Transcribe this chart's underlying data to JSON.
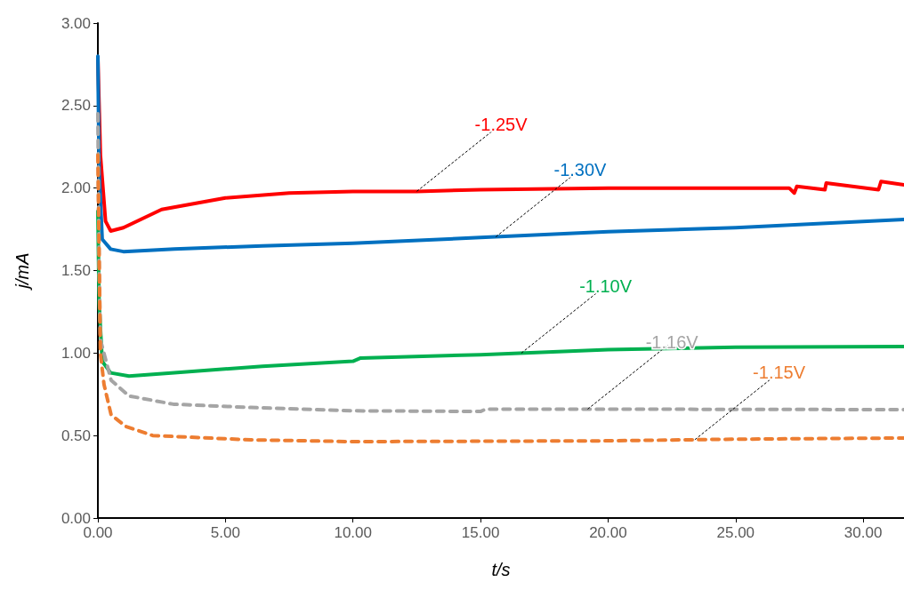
{
  "chart_data": {
    "type": "line",
    "xlabel": "t/s",
    "ylabel": "j/mA",
    "xlim": [
      0,
      31.6
    ],
    "ylim": [
      0,
      3
    ],
    "xticks": [
      {
        "value": 0,
        "label": "0.00"
      },
      {
        "value": 5,
        "label": "5.00"
      },
      {
        "value": 10,
        "label": "10.00"
      },
      {
        "value": 15,
        "label": "15.00"
      },
      {
        "value": 20,
        "label": "20.00"
      },
      {
        "value": 25,
        "label": "25.00"
      },
      {
        "value": 30,
        "label": "30.00"
      }
    ],
    "yticks": [
      {
        "value": 0,
        "label": "0.00"
      },
      {
        "value": 0.5,
        "label": "0.50"
      },
      {
        "value": 1,
        "label": "1.00"
      },
      {
        "value": 1.5,
        "label": "1.50"
      },
      {
        "value": 2,
        "label": "2.00"
      },
      {
        "value": 2.5,
        "label": "2.50"
      },
      {
        "value": 3,
        "label": "3.00"
      }
    ],
    "grid": false,
    "legend": false,
    "marker": "none",
    "series": [
      {
        "name": "-1.25V",
        "color": "#ff0000",
        "line_style": "solid",
        "x": [
          0,
          0.1,
          0.3,
          0.5,
          1,
          2.5,
          5,
          7.5,
          10,
          12.5,
          15,
          20,
          24,
          27.1,
          27.3,
          27.4,
          28.5,
          28.55,
          30.6,
          30.7,
          31.6
        ],
        "values": [
          2.78,
          2.2,
          1.8,
          1.74,
          1.76,
          1.87,
          1.94,
          1.97,
          1.98,
          1.98,
          1.99,
          2.0,
          2.0,
          2.0,
          1.97,
          2.01,
          1.99,
          2.03,
          1.99,
          2.04,
          2.02
        ]
      },
      {
        "name": "-1.30V",
        "color": "#0070c0",
        "line_style": "solid",
        "x": [
          0,
          0.05,
          0.17,
          0.5,
          1,
          3,
          6.45,
          10,
          15,
          20,
          25,
          31.6
        ],
        "values": [
          2.8,
          2.1,
          1.69,
          1.63,
          1.615,
          1.63,
          1.65,
          1.665,
          1.7,
          1.735,
          1.76,
          1.81
        ]
      },
      {
        "name": "-1.10V",
        "color": "#00b050",
        "line_style": "solid",
        "x": [
          0,
          0.05,
          0.17,
          0.5,
          1.22,
          3,
          6.45,
          10,
          10.3,
          15,
          20,
          25,
          31.6
        ],
        "values": [
          1.86,
          1.3,
          0.95,
          0.88,
          0.86,
          0.88,
          0.92,
          0.95,
          0.97,
          0.99,
          1.02,
          1.035,
          1.04
        ]
      },
      {
        "name": "-1.16V",
        "color": "#a5a5a5",
        "line_style": "dashed",
        "x": [
          0,
          0.05,
          0.1,
          0.52,
          1.22,
          2.96,
          6,
          10,
          15,
          15.2,
          20,
          31.6
        ],
        "values": [
          2.45,
          1.5,
          1.08,
          0.835,
          0.74,
          0.69,
          0.67,
          0.65,
          0.646,
          0.66,
          0.66,
          0.657
        ]
      },
      {
        "name": "-1.15V",
        "color": "#ed7d31",
        "line_style": "dashed",
        "x": [
          0,
          0.1,
          0.24,
          0.52,
          1.1,
          2.15,
          6,
          10,
          20,
          25,
          31.6
        ],
        "values": [
          2.2,
          1.0,
          0.81,
          0.625,
          0.555,
          0.5,
          0.474,
          0.463,
          0.468,
          0.478,
          0.485
        ]
      }
    ]
  }
}
